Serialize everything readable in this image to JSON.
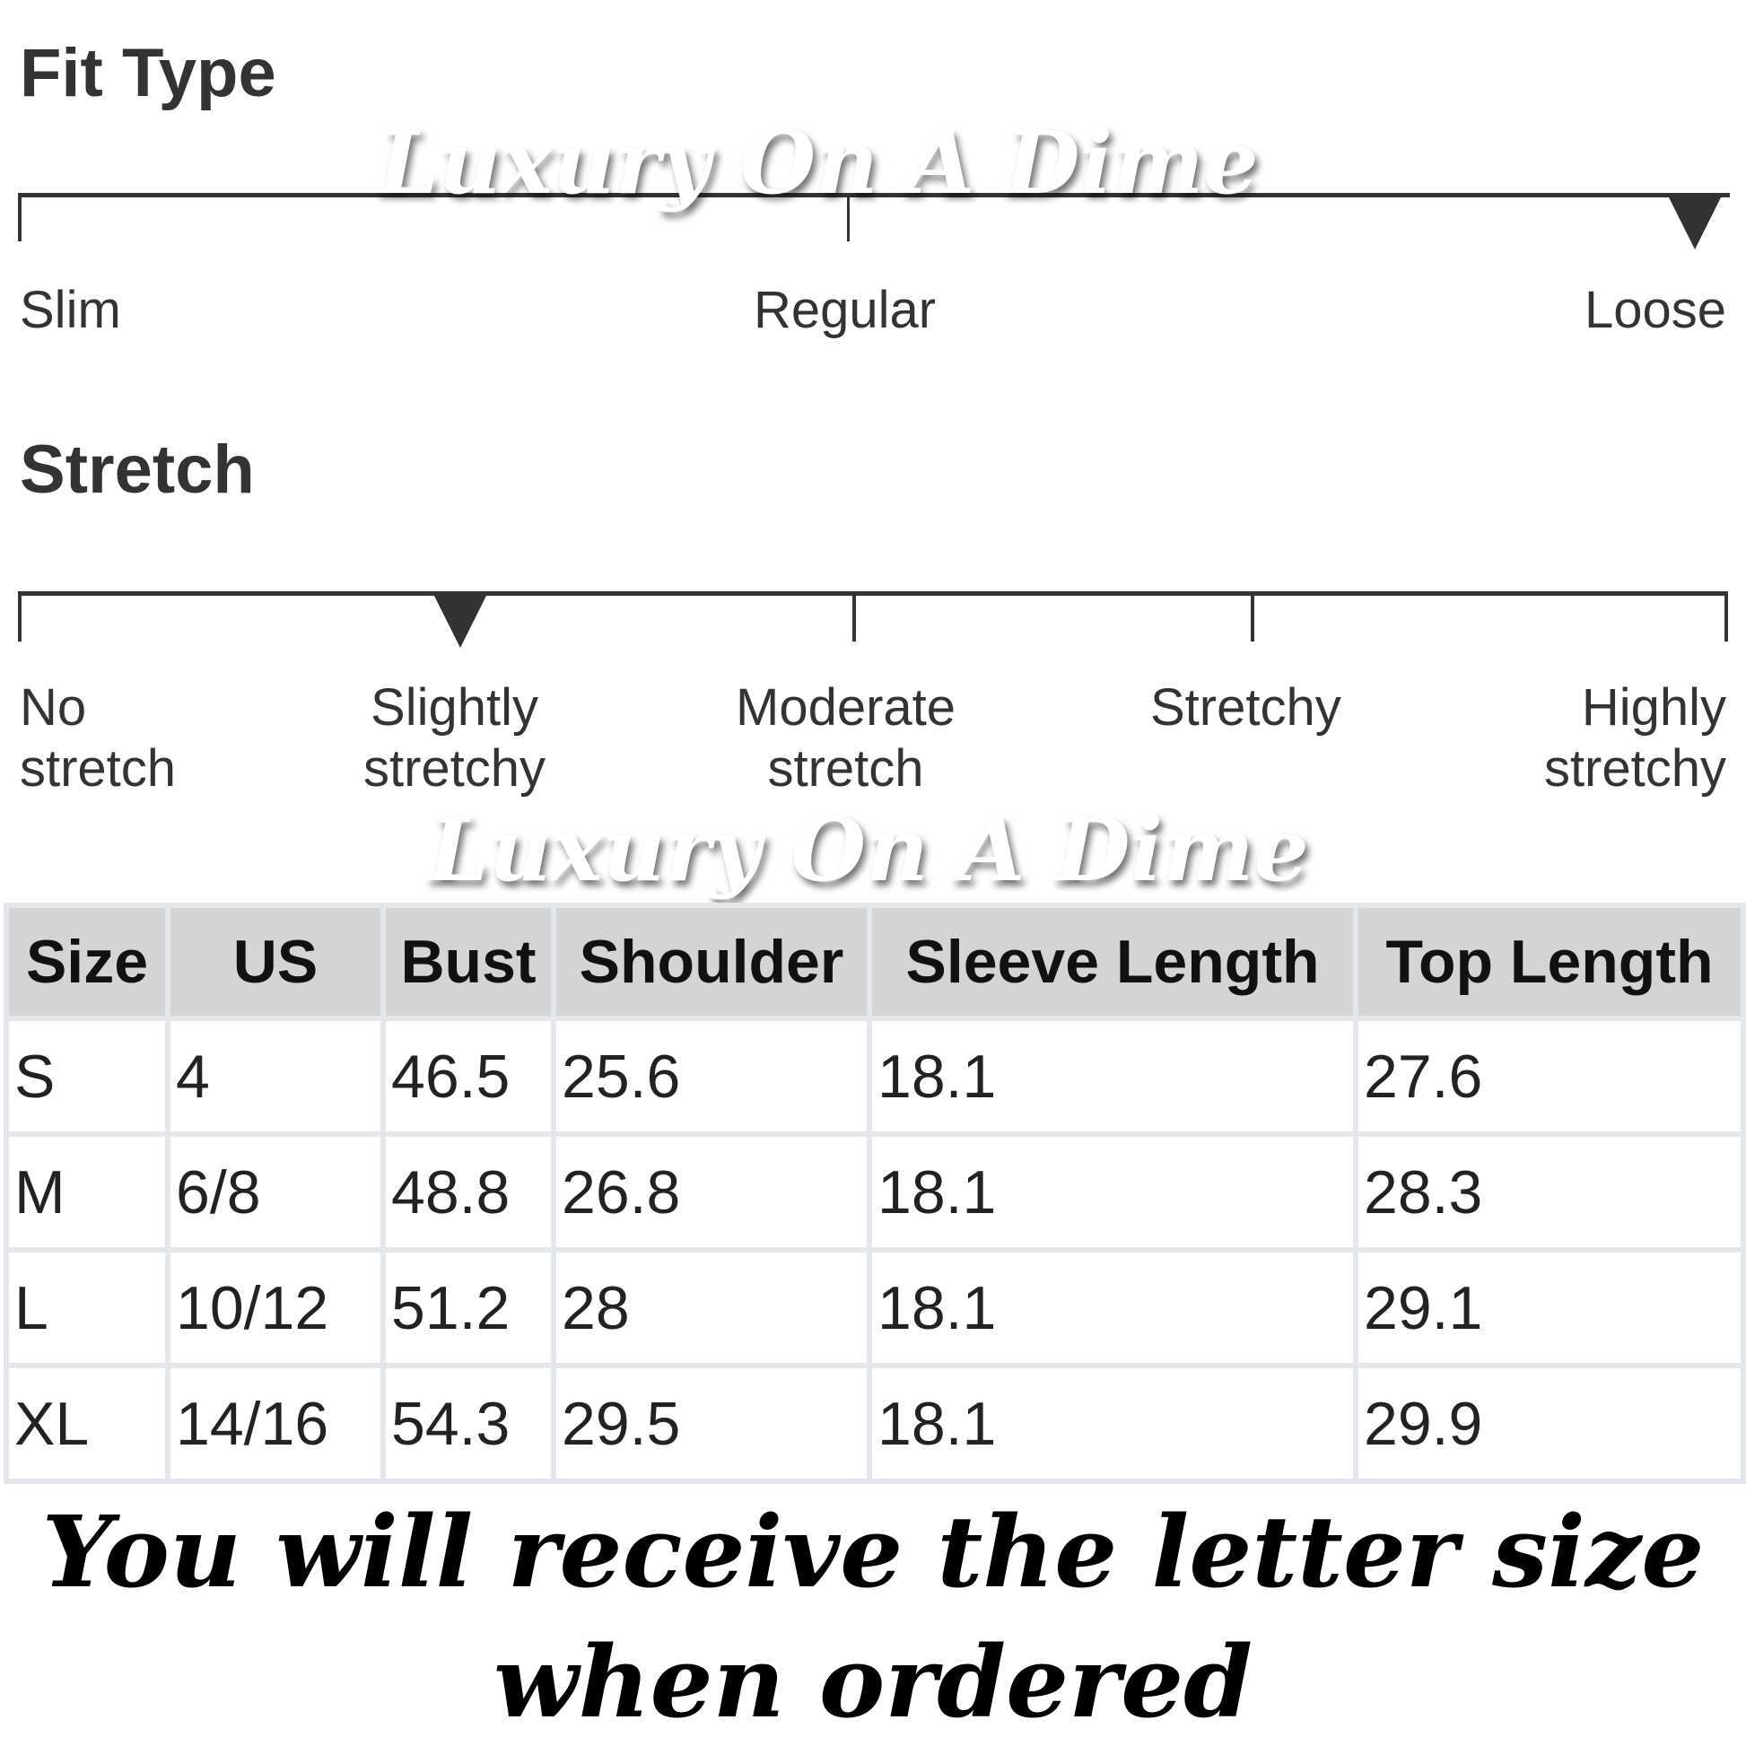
{
  "fit_type": {
    "title": "Fit Type",
    "labels": [
      "Slim",
      "Regular",
      "Loose"
    ],
    "selected": "Loose"
  },
  "stretch": {
    "title": "Stretch",
    "labels": [
      [
        "No",
        "stretch"
      ],
      [
        "Slightly",
        "stretchy"
      ],
      [
        "Moderate",
        "stretch"
      ],
      [
        "Stretchy",
        ""
      ],
      [
        "Highly",
        "stretchy"
      ]
    ],
    "selected": "Slightly stretchy"
  },
  "watermark": "Luxury On A Dime",
  "table": {
    "headers": [
      "Size",
      "US",
      "Bust",
      "Shoulder",
      "Sleeve Length",
      "Top Length"
    ],
    "rows": [
      [
        "S",
        "4",
        "46.5",
        "25.6",
        "18.1",
        "27.6"
      ],
      [
        "M",
        "6/8",
        "48.8",
        "26.8",
        "18.1",
        "28.3"
      ],
      [
        "L",
        "10/12",
        "51.2",
        "28",
        "18.1",
        "29.1"
      ],
      [
        "XL",
        "14/16",
        "54.3",
        "29.5",
        "18.1",
        "29.9"
      ]
    ]
  },
  "notice": [
    "You will receive the letter size",
    "when ordered"
  ]
}
